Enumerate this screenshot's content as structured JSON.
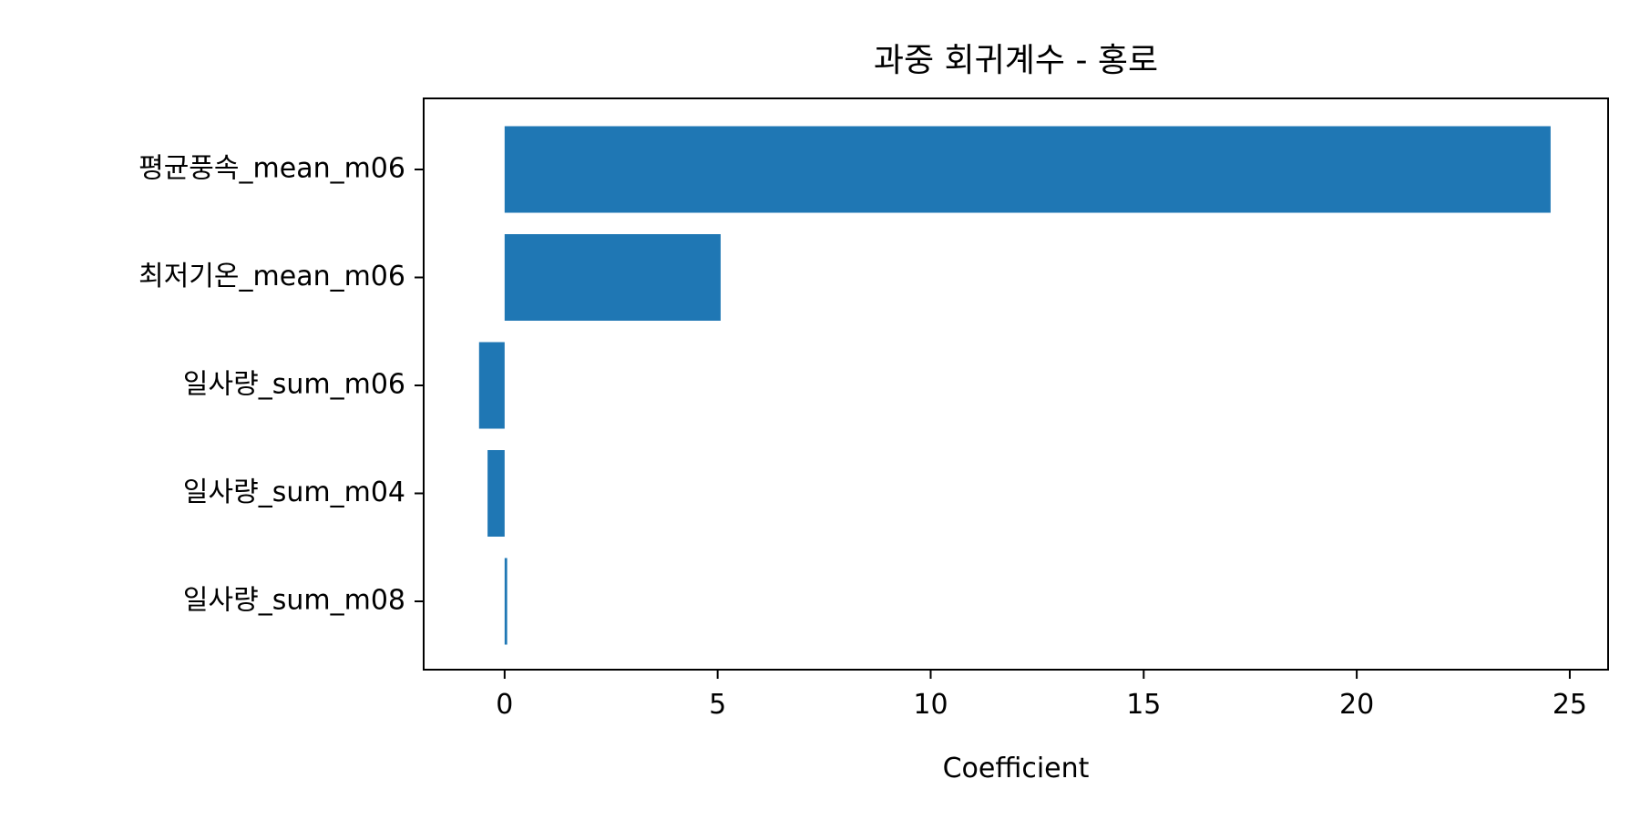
{
  "chart_data": {
    "type": "bar",
    "orientation": "horizontal",
    "title": "과중 회귀계수 - 홍로",
    "xlabel": "Coefficient",
    "ylabel": "",
    "categories": [
      "평균풍속_mean_m06",
      "최저기온_mean_m06",
      "일사량_sum_m06",
      "일사량_sum_m04",
      "일사량_sum_m08"
    ],
    "values": [
      24.55,
      5.07,
      -0.6,
      -0.4,
      0.06
    ],
    "xlim": [
      -1.9,
      25.9
    ],
    "xticks": [
      0,
      5,
      10,
      15,
      20,
      25
    ],
    "grid": false,
    "colors": {
      "bar": "#1f77b4",
      "axis": "#000000",
      "background": "#ffffff"
    }
  }
}
